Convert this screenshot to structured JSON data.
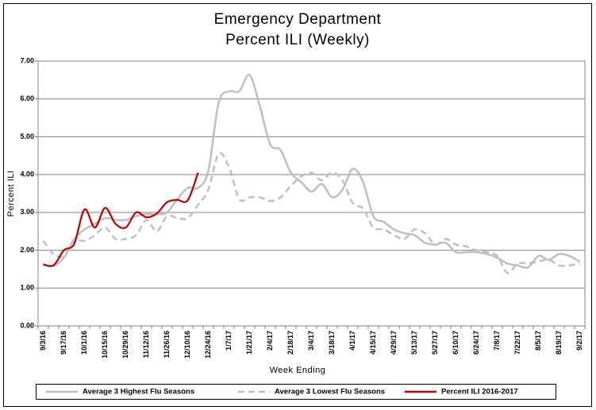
{
  "chart_data": {
    "type": "line",
    "title": "Emergency Department",
    "subtitle": "Percent ILI (Weekly)",
    "x_label": "Week Ending",
    "y_label": "Percent ILI",
    "categories": [
      "9/3/16",
      null,
      "9/17/16",
      null,
      "10/1/16",
      null,
      "10/15/16",
      null,
      "10/29/16",
      null,
      "11/12/16",
      null,
      "11/26/16",
      null,
      "12/10/16",
      null,
      "12/24/16",
      null,
      "1/7/17",
      null,
      "1/21/17",
      null,
      "2/4/17",
      null,
      "2/18/17",
      null,
      "3/4/17",
      null,
      "3/18/17",
      null,
      "4/1/17",
      null,
      "4/15/17",
      null,
      "4/29/17",
      null,
      "5/13/17",
      null,
      "5/27/17",
      null,
      "6/10/17",
      null,
      "6/24/17",
      null,
      "7/8/17",
      null,
      "7/22/17",
      null,
      "8/5/17",
      null,
      "8/19/17",
      null,
      "9/2/17"
    ],
    "series": [
      {
        "name": "Average 3 Highest Flu Seasons",
        "color": "#bfbfbf",
        "dash": false,
        "values": [
          1.6,
          1.6,
          1.8,
          2.3,
          2.55,
          2.7,
          2.85,
          2.8,
          2.8,
          2.9,
          2.95,
          2.95,
          3.0,
          3.35,
          3.65,
          3.65,
          4.1,
          5.9,
          6.2,
          6.2,
          6.63,
          5.8,
          4.8,
          4.65,
          4.05,
          3.8,
          3.55,
          3.75,
          3.4,
          3.6,
          4.15,
          3.8,
          2.9,
          2.75,
          2.55,
          2.45,
          2.4,
          2.2,
          2.15,
          2.2,
          1.95,
          1.95,
          1.95,
          1.9,
          1.8,
          1.65,
          1.6,
          1.55,
          1.85,
          1.75,
          1.9,
          1.85,
          1.7
        ]
      },
      {
        "name": "Average 3 Lowest Flu Seasons",
        "color": "#bfbfbf",
        "dash": true,
        "values": [
          2.25,
          1.9,
          1.85,
          2.25,
          2.25,
          2.4,
          2.6,
          2.3,
          2.3,
          2.4,
          2.8,
          2.5,
          2.9,
          2.85,
          2.85,
          3.2,
          3.6,
          4.55,
          4.2,
          3.35,
          3.4,
          3.4,
          3.3,
          3.4,
          3.7,
          3.95,
          4.05,
          3.85,
          4.05,
          3.85,
          3.25,
          3.1,
          2.6,
          2.55,
          2.4,
          2.3,
          2.55,
          2.45,
          2.15,
          2.3,
          2.15,
          2.1,
          2.0,
          1.95,
          1.85,
          1.4,
          1.65,
          1.65,
          1.7,
          1.75,
          1.6,
          1.6,
          1.65
        ]
      },
      {
        "name": "Percent ILI 2016-2017",
        "color": "#c00000",
        "dash": false,
        "values": [
          1.63,
          1.6,
          2.0,
          2.17,
          3.08,
          2.6,
          3.12,
          2.7,
          2.6,
          3.0,
          2.87,
          2.97,
          3.27,
          3.33,
          3.32,
          4.05,
          null,
          null,
          null,
          null,
          null,
          null,
          null,
          null,
          null,
          null,
          null,
          null,
          null,
          null,
          null,
          null,
          null,
          null,
          null,
          null,
          null,
          null,
          null,
          null,
          null,
          null,
          null,
          null,
          null,
          null,
          null,
          null,
          null,
          null,
          null,
          null,
          null
        ]
      }
    ],
    "ylim": [
      0,
      7
    ],
    "yticks": [
      {
        "value": 0,
        "label": "0.00"
      },
      {
        "value": 1,
        "label": "1.00"
      },
      {
        "value": 2,
        "label": "2.00"
      },
      {
        "value": 3,
        "label": "3.00"
      },
      {
        "value": 4,
        "label": "4.00"
      },
      {
        "value": 5,
        "label": "5.00"
      },
      {
        "value": 6,
        "label": "6.00"
      },
      {
        "value": 7,
        "label": "7.00"
      }
    ],
    "grid": true,
    "legend": "bottom"
  }
}
